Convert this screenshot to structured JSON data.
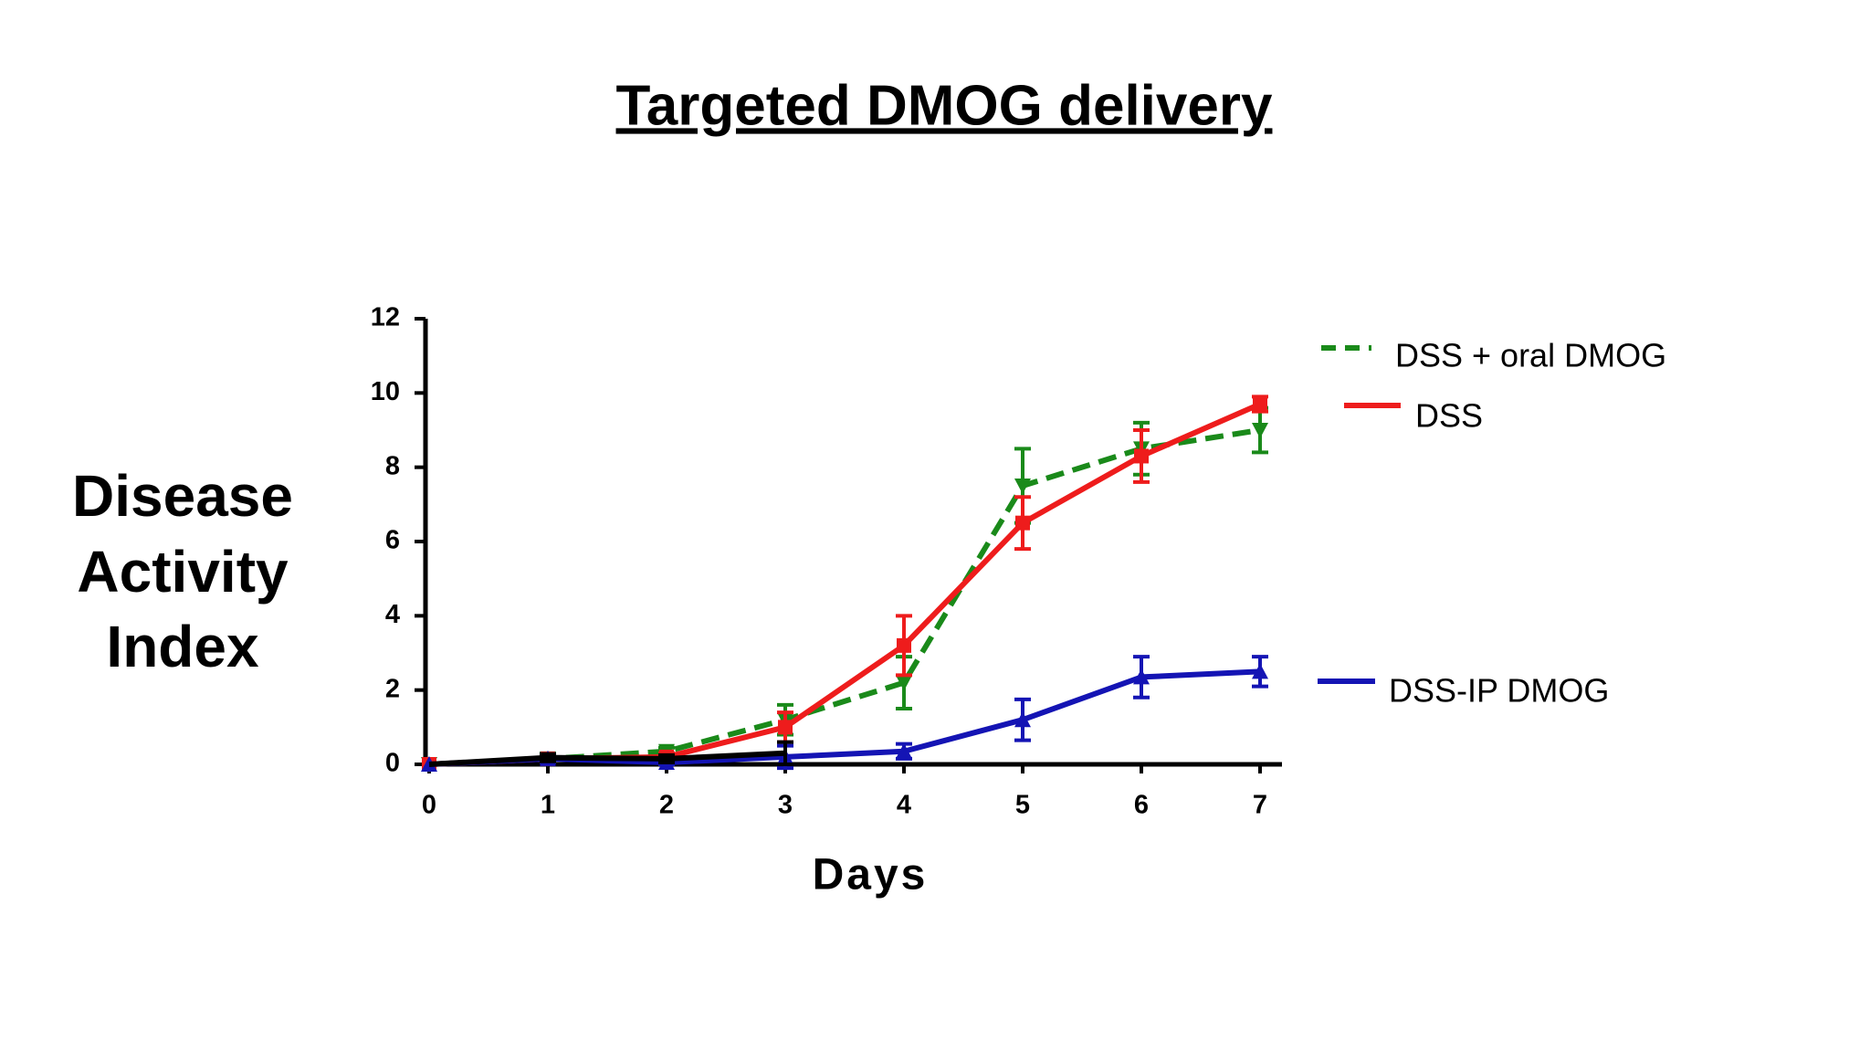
{
  "chart_data": {
    "type": "line",
    "title": "Targeted DMOG delivery",
    "x_label": "Days",
    "y_label": [
      "Disease",
      "Activity",
      "Index"
    ],
    "x": [
      0,
      1,
      2,
      3,
      4,
      5,
      6,
      7
    ],
    "xlim": [
      0,
      7
    ],
    "xticks": [
      0,
      1,
      2,
      3,
      4,
      5,
      6,
      7
    ],
    "ylim": [
      0,
      12
    ],
    "yticks": [
      0,
      2,
      4,
      6,
      8,
      10,
      12
    ],
    "series": [
      {
        "name": "DSS + oral DMOG",
        "color": "#1a8a1a",
        "dash": true,
        "marker": "down-triangle",
        "values": [
          0,
          0.15,
          0.35,
          1.2,
          2.2,
          7.5,
          8.5,
          9.0
        ],
        "errors": [
          0,
          0.1,
          0.1,
          0.4,
          0.7,
          1.0,
          0.7,
          0.6
        ]
      },
      {
        "name": "DSS",
        "color": "#ee1c1c",
        "dash": false,
        "marker": "square",
        "values": [
          0,
          0.15,
          0.2,
          1.0,
          3.2,
          6.5,
          8.3,
          9.7
        ],
        "errors": [
          0,
          0.1,
          0.1,
          0.4,
          0.8,
          0.7,
          0.7,
          0.2
        ]
      },
      {
        "name": "DSS-IP DMOG",
        "color": "#1414b4",
        "dash": false,
        "marker": "up-triangle",
        "values": [
          0,
          0.15,
          0.05,
          0.2,
          0.35,
          1.2,
          2.35,
          2.5
        ],
        "errors": [
          0,
          0.1,
          0.05,
          0.3,
          0.2,
          0.55,
          0.55,
          0.4
        ]
      },
      {
        "color": "#000000",
        "dash": false,
        "marker": "none",
        "values": [
          0,
          0.18,
          0.15,
          0.3,
          null,
          null,
          null,
          null
        ],
        "errors": [
          0,
          0.1,
          0.1,
          0.3,
          null,
          null,
          null,
          null
        ]
      }
    ]
  }
}
